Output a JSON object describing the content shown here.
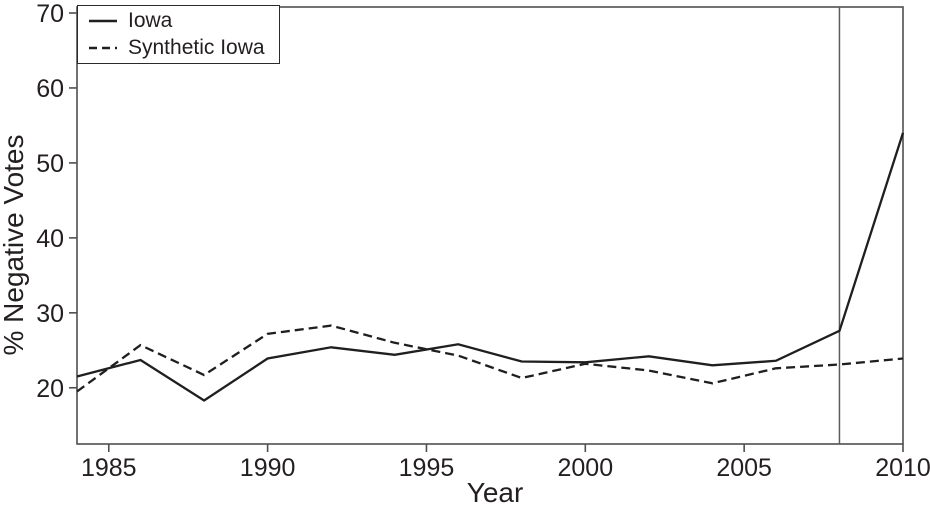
{
  "chart_data": {
    "type": "line",
    "title": "",
    "xlabel": "Year",
    "ylabel": "% Negative Votes",
    "x": [
      1984,
      1986,
      1988,
      1990,
      1992,
      1994,
      1996,
      1998,
      2000,
      2002,
      2004,
      2006,
      2008,
      2010
    ],
    "series": [
      {
        "name": "Iowa",
        "style": "solid",
        "values": [
          21.5,
          23.7,
          18.3,
          23.9,
          25.4,
          24.4,
          25.8,
          23.5,
          23.4,
          24.2,
          23.0,
          23.6,
          27.6,
          54.0
        ]
      },
      {
        "name": "Synthetic Iowa",
        "style": "dashed",
        "values": [
          19.5,
          25.7,
          21.7,
          27.2,
          28.3,
          26.0,
          24.3,
          21.3,
          23.2,
          22.3,
          20.6,
          22.6,
          23.1,
          23.9
        ]
      }
    ],
    "xlim": [
      1984,
      2010
    ],
    "ylim": [
      12.5,
      70.8
    ],
    "xticks": [
      1985,
      1990,
      1995,
      2000,
      2005,
      2010
    ],
    "yticks": [
      20,
      30,
      40,
      50,
      60,
      70
    ],
    "vline_x": 2008,
    "grid": false,
    "legend_position": "top-left",
    "line_color": "#1f1f1f",
    "frame_color": "#4f4f4f",
    "vline_color": "#5a5a5a"
  }
}
